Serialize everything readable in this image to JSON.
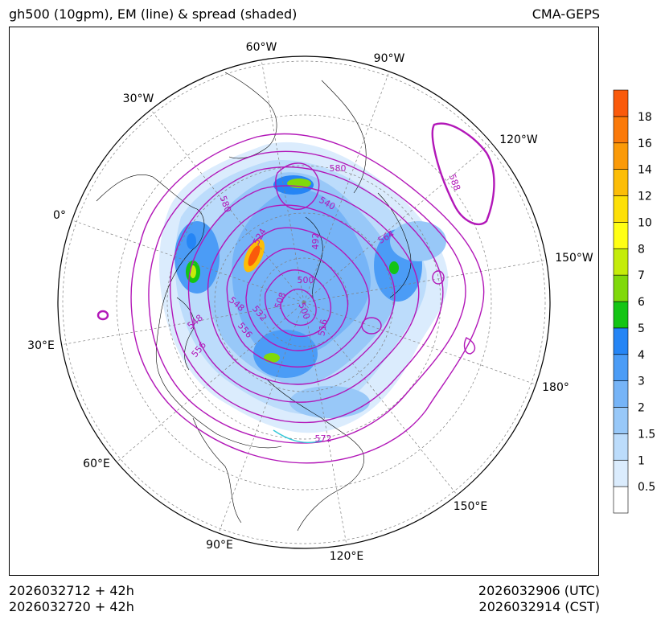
{
  "header": {
    "title_left": "gh500 (10gpm), EM (line) & spread (shaded)",
    "title_right": "CMA-GEPS"
  },
  "footer": {
    "init_utc": "2026032712 + 42h",
    "init_cst": "2026032720 + 42h",
    "valid_utc": "2026032906 (UTC)",
    "valid_cst": "2026032914 (CST)"
  },
  "map": {
    "projection": "north-polar-stereographic",
    "longitude_labels": [
      "60°W",
      "90°W",
      "30°W",
      "120°W",
      "0°",
      "150°W",
      "30°E",
      "180°",
      "60°E",
      "150°E",
      "90°E",
      "120°E"
    ],
    "contour_labels": [
      "580",
      "580",
      "540",
      "524",
      "492",
      "564",
      "500",
      "548",
      "532",
      "508",
      "500",
      "516",
      "548",
      "556",
      "556",
      "588",
      "572"
    ]
  },
  "colorbar": {
    "tick_labels": [
      "0.5",
      "1",
      "1.5",
      "2",
      "3",
      "4",
      "5",
      "6",
      "7",
      "8",
      "10",
      "12",
      "14",
      "16",
      "18"
    ],
    "colors": [
      "#ffffff",
      "#dbecfd",
      "#bcdcfb",
      "#98c8f8",
      "#76b4f7",
      "#4b9cf6",
      "#2585f5",
      "#14c514",
      "#80d90b",
      "#c4ec0a",
      "#ffff14",
      "#fde007",
      "#fcbd07",
      "#fb9a08",
      "#fb7a0a",
      "#fa5a0b"
    ]
  }
}
